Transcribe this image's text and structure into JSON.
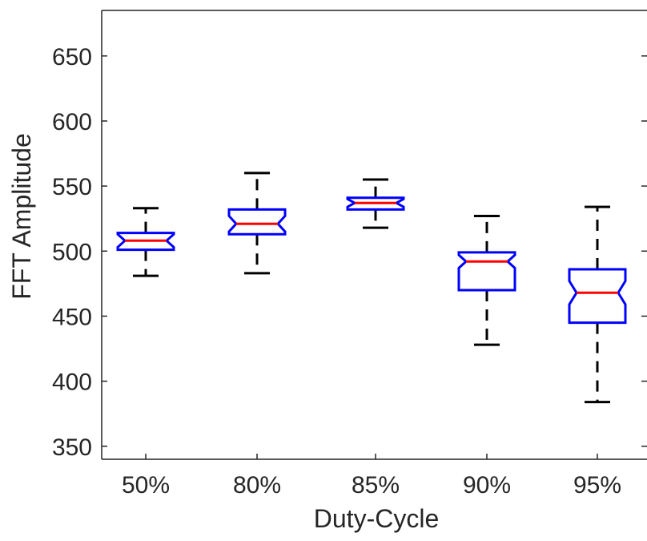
{
  "chart_data": {
    "type": "box",
    "title": "",
    "xlabel": "Duty-Cycle",
    "ylabel": "FFT Amplitude",
    "ylim": [
      340,
      685
    ],
    "yticks": [
      350,
      400,
      450,
      500,
      550,
      600,
      650
    ],
    "grid": false,
    "legend": null,
    "categories": [
      "50%",
      "80%",
      "85%",
      "90%",
      "95%"
    ],
    "boxes": [
      {
        "category": "50%",
        "whisker_low": 481,
        "q1": 501,
        "median": 508,
        "q3": 514,
        "whisker_high": 533,
        "notch_low": 503,
        "notch_high": 513
      },
      {
        "category": "80%",
        "whisker_low": 483,
        "q1": 513,
        "median": 521,
        "q3": 532,
        "whisker_high": 560,
        "notch_low": 515,
        "notch_high": 527
      },
      {
        "category": "85%",
        "whisker_low": 518,
        "q1": 532,
        "median": 537,
        "q3": 541,
        "whisker_high": 555,
        "notch_low": 534,
        "notch_high": 540
      },
      {
        "category": "90%",
        "whisker_low": 428,
        "q1": 470,
        "median": 492,
        "q3": 499,
        "whisker_high": 527,
        "notch_low": 487,
        "notch_high": 497
      },
      {
        "category": "95%",
        "whisker_low": 384,
        "q1": 445,
        "median": 468,
        "q3": 486,
        "whisker_high": 534,
        "notch_low": 459,
        "notch_high": 477
      }
    ],
    "colors": {
      "box": "#0000ff",
      "median": "#ff0000",
      "whisker": "#000000",
      "axis": "#262626"
    }
  }
}
